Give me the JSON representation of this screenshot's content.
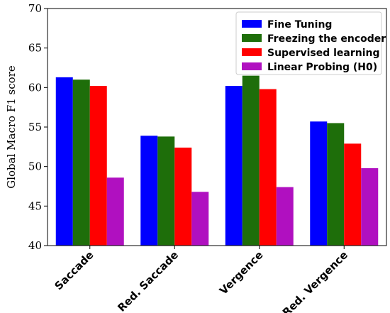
{
  "chart_data": {
    "type": "bar",
    "title": "",
    "xlabel": "",
    "ylabel": "Global Macro F1 score",
    "ylim": [
      40,
      70
    ],
    "yticks": [
      40,
      45,
      50,
      55,
      60,
      65,
      70
    ],
    "grid": false,
    "legend_position": "top-right",
    "categories": [
      "Saccade",
      "Red. Saccade",
      "Vergence",
      "Red. Vergence"
    ],
    "series": [
      {
        "name": "Fine Tuning",
        "color": "#0000ff",
        "values": [
          61.3,
          53.9,
          60.2,
          55.7
        ]
      },
      {
        "name": "Freezing the encoder",
        "color": "#1e6e0a",
        "values": [
          61.0,
          53.8,
          61.5,
          55.5
        ]
      },
      {
        "name": "Supervised learning",
        "color": "#ff0000",
        "values": [
          60.2,
          52.4,
          59.8,
          52.9
        ]
      },
      {
        "name": "Linear Probing (H0)",
        "color": "#b010c0",
        "values": [
          48.6,
          46.8,
          47.4,
          49.8
        ]
      }
    ]
  }
}
